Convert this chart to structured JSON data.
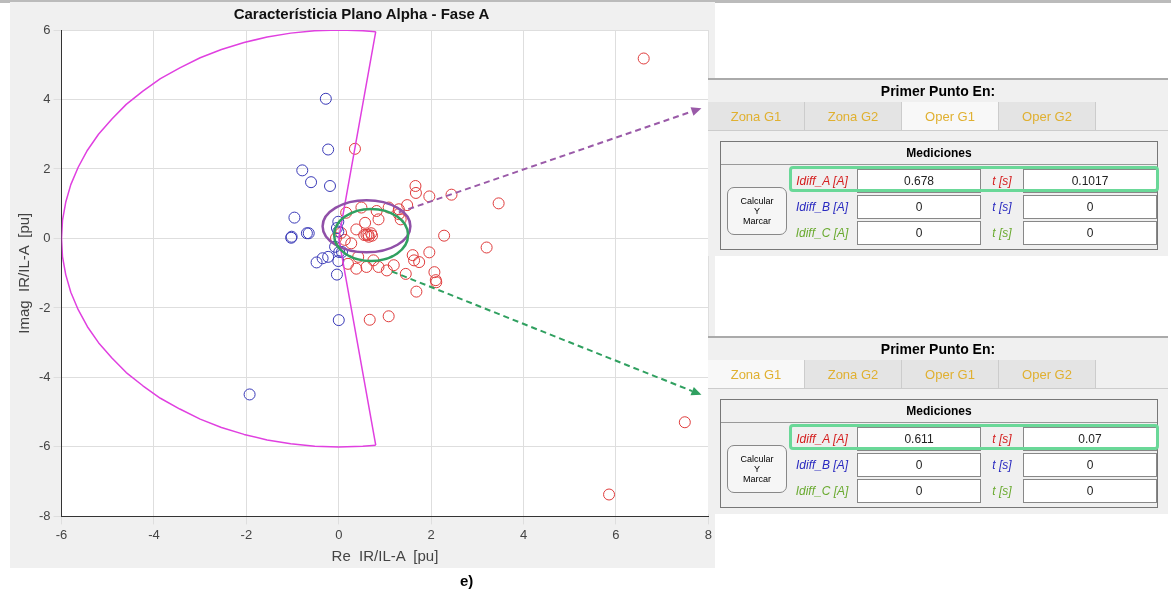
{
  "chart_data": [
    {
      "type": "scatter",
      "title": "Característicia Plano Alpha - Fase A",
      "xlabel": "Re  IR/IL-A  [pu]",
      "ylabel": "Imag  IR/IL-A  [pu]",
      "xlim": [
        -6,
        8
      ],
      "ylim": [
        -8,
        6
      ],
      "xticks": [
        -6,
        -4,
        -2,
        0,
        2,
        4,
        6,
        8
      ],
      "yticks": [
        -8,
        -6,
        -4,
        -2,
        0,
        2,
        4,
        6
      ],
      "grid": true,
      "marker": "circle",
      "annotations": [
        "e)"
      ],
      "series": [
        {
          "type": "line",
          "marker": "none",
          "color": "#e040e0",
          "x": [
            0.8,
            0.52,
            0,
            -0.52,
            -1.04,
            -1.55,
            -2.05,
            -2.54,
            -3,
            -3.44,
            -3.86,
            -4.24,
            -4.6,
            -4.91,
            -5.2,
            -5.44,
            -5.64,
            -5.8,
            -5.91,
            -5.98,
            -6,
            -5.98,
            -5.91,
            -5.8,
            -5.64,
            -5.44,
            -5.2,
            -4.91,
            -4.6,
            -4.24,
            -3.86,
            -3.44,
            -3,
            -2.54,
            -2.05,
            -1.55,
            -1.04,
            -0.52,
            0,
            0.52,
            0.8
          ],
          "values": [
            5.95,
            5.98,
            6,
            5.98,
            5.91,
            5.8,
            5.64,
            5.44,
            5.2,
            4.91,
            4.6,
            4.24,
            3.86,
            3.44,
            3,
            2.54,
            2.05,
            1.55,
            1.04,
            0.52,
            0,
            -0.52,
            -1.04,
            -1.55,
            -2.05,
            -2.54,
            -3,
            -3.44,
            -3.86,
            -4.24,
            -4.6,
            -4.91,
            -5.2,
            -5.44,
            -5.64,
            -5.8,
            -5.91,
            -5.98,
            -6,
            -5.98,
            -5.95
          ]
        },
        {
          "type": "line",
          "marker": "none",
          "color": "#e040e0",
          "x": [
            0.8,
            0,
            0.8
          ],
          "values": [
            5.95,
            0,
            -5.95
          ]
        },
        {
          "color": "#3a3ab8",
          "x": [
            -0.28,
            -0.23,
            -0.79,
            -0.6,
            -0.19,
            -0.96,
            -1.03,
            -1.02,
            -0.69,
            -0.65,
            -0.48,
            -0.35,
            -0.23,
            -0.04,
            -0.01,
            -0.01,
            0.01,
            0,
            -0.01,
            -0.04,
            -0.08,
            0.07,
            -1.93
          ],
          "values": [
            4.02,
            2.56,
            1.96,
            1.62,
            1.51,
            0.6,
            0.02,
            0.05,
            0.15,
            0.15,
            -0.69,
            -0.57,
            -0.53,
            -1.04,
            0.48,
            0.2,
            -0.39,
            -2.35,
            -0.65,
            0.3,
            -0.24,
            -0.39,
            -4.49
          ]
        },
        {
          "color": "#e03c3c",
          "x": [
            0.35,
            1.66,
            1.67,
            1.96,
            2.44,
            3.46,
            1.48,
            1.3,
            1.3,
            1.34,
            1.08,
            0.82,
            0.49,
            0.16,
            2.28,
            3.2,
            1.96,
            1.6,
            1.63,
            1.74,
            2.07,
            2.11,
            2.1,
            1.45,
            1.68,
            1.19,
            1.04,
            0.86,
            0.6,
            0.38,
            0.2,
            0.75,
            0.42,
            0.27,
            0.13,
            -0.06,
            0.05,
            0.38,
            0.57,
            0.86,
            0.67,
            1.08,
            0.64,
            0.6,
            0.7,
            0.65,
            0.55,
            0.72,
            6.6,
            7.49,
            5.85
          ],
          "values": [
            2.58,
            1.51,
            1.31,
            1.21,
            1.26,
            1.01,
            0.96,
            0.84,
            0.7,
            0.55,
            0.89,
            0.79,
            0.89,
            0.74,
            0.08,
            -0.26,
            -0.4,
            -0.48,
            -0.63,
            -0.68,
            -0.97,
            -1.26,
            -1.2,
            -1.02,
            -1.53,
            -0.77,
            -0.92,
            -0.82,
            -0.82,
            -0.87,
            -0.73,
            -0.63,
            -0.53,
            -0.14,
            -0.04,
            0.01,
            0.16,
            0.26,
            0.45,
            0.55,
            -2.34,
            -2.24,
            0.11,
            0.1,
            0.15,
            0.05,
            0.1,
            0.08,
            5.18,
            -5.29,
            -7.37
          ]
        }
      ]
    },
    {
      "type": "other",
      "title": "Primer Punto En:",
      "annotations": [
        "Zona G1",
        "Zona G2",
        "Oper G1",
        "Oper G2",
        "Mediciones",
        "Calcular\nY\nMarcar",
        "Idiff_A [A]",
        "0.678",
        "t [s]",
        "0.1017",
        "Idiff_B [A]",
        "0",
        "t [s]",
        "0",
        "Idiff_C [A]",
        "0",
        "t [s]",
        "0"
      ]
    },
    {
      "type": "other",
      "title": "Primer Punto En:",
      "annotations": [
        "Zona G1",
        "Zona G2",
        "Oper G1",
        "Oper G2",
        "Mediciones",
        "Calcular\nY\nMarcar",
        "Idiff_A [A]",
        "0.611",
        "t [s]",
        "0.07",
        "Idiff_B [A]",
        "0",
        "t [s]",
        "0",
        "Idiff_C [A]",
        "0",
        "t [s]",
        "0"
      ]
    }
  ]
}
